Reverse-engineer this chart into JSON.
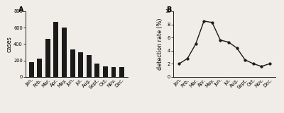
{
  "months": [
    "Jan.",
    "Feb.",
    "Mar.",
    "Apr.",
    "May.",
    "Jun.",
    "Jul.",
    "Aug.",
    "Sept.",
    "Oct.",
    "Nov.",
    "Dec."
  ],
  "cases": [
    180,
    225,
    465,
    675,
    600,
    335,
    300,
    265,
    165,
    130,
    115,
    120
  ],
  "detection_rate": [
    2.0,
    2.8,
    5.0,
    8.5,
    8.3,
    5.6,
    5.3,
    4.4,
    2.6,
    2.0,
    1.6,
    2.0
  ],
  "bar_color": "#1a1a1a",
  "line_color": "#1a1a1a",
  "marker": "o",
  "marker_size": 2.5,
  "line_width": 1.0,
  "ylim_cases": [
    0,
    800
  ],
  "yticks_cases": [
    0,
    200,
    400,
    600,
    800
  ],
  "ylim_rate": [
    0,
    10
  ],
  "yticks_rate": [
    0,
    2,
    4,
    6,
    8,
    10
  ],
  "ylabel_cases": "cases",
  "ylabel_rate": "detection rate (%)",
  "label_A": "A",
  "label_B": "B",
  "tick_fontsize": 4.8,
  "label_fontsize": 5.8,
  "panel_label_fontsize": 7,
  "bg_color": "#f0ece8"
}
